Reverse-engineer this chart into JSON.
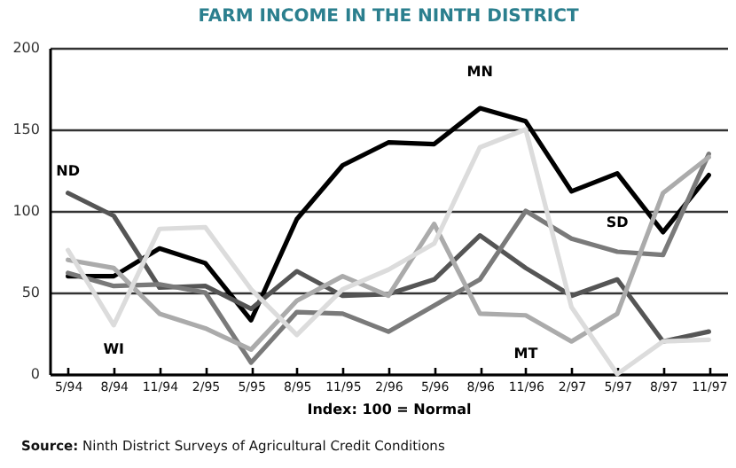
{
  "chart_data": {
    "type": "line",
    "title": "FARM INCOME IN THE NINTH DISTRICT",
    "xlabel": "Index: 100 = Normal",
    "categories": [
      "5/94",
      "8/94",
      "11/94",
      "2/95",
      "5/95",
      "8/95",
      "11/95",
      "2/96",
      "5/96",
      "8/96",
      "11/96",
      "2/97",
      "5/97",
      "8/97",
      "11/97"
    ],
    "series": [
      {
        "name": "MN",
        "color": "#000000",
        "values": [
          60,
          60,
          77,
          68,
          33,
          95,
          128,
          142,
          141,
          163,
          155,
          112,
          123,
          87,
          122
        ]
      },
      {
        "name": "ND",
        "color": "#555555",
        "values": [
          111,
          97,
          53,
          54,
          40,
          63,
          48,
          49,
          58,
          85,
          65,
          48,
          58,
          20,
          26
        ]
      },
      {
        "name": "SD",
        "color": "#7a7a7a",
        "values": [
          62,
          54,
          55,
          50,
          7,
          38,
          37,
          26,
          42,
          58,
          100,
          83,
          75,
          73,
          135
        ]
      },
      {
        "name": "MT",
        "color": "#ababab",
        "values": [
          70,
          65,
          37,
          28,
          15,
          45,
          60,
          48,
          92,
          37,
          36,
          20,
          37,
          111,
          133
        ]
      },
      {
        "name": "WI",
        "color": "#dcdcdc",
        "values": [
          76,
          30,
          89,
          90,
          52,
          24,
          52,
          64,
          80,
          139,
          150,
          41,
          0,
          20,
          21
        ]
      }
    ],
    "ylim": [
      0,
      200
    ],
    "yticks": [
      0,
      50,
      100,
      150,
      200
    ],
    "grid": "y",
    "legend": false,
    "marker": "none",
    "line_style": "solid",
    "annotations": [
      "Source: Ninth District Surveys of Agricultural Credit Conditions"
    ]
  }
}
